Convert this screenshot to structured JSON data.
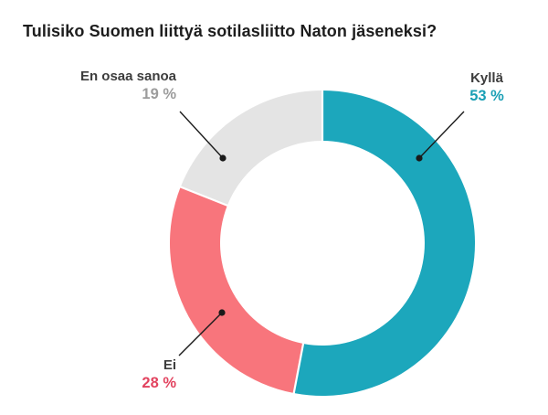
{
  "chart_data": {
    "type": "pie",
    "subtype": "donut",
    "title": "Tulisiko Suomen liittyä sotilasliitto Naton jäseneksi?",
    "total": 100,
    "start_angle_deg": 0,
    "direction": "clockwise",
    "donut_hole_ratio": 0.67,
    "legend_position": "callout-labels",
    "background": "#FFFFFF",
    "separator_color": "#FFFFFF",
    "leader_line_color": "#1A1A1A",
    "label_name_color": "#3D3D3D",
    "slices": [
      {
        "label": "Kyllä",
        "value": 53,
        "display_value": "53 %",
        "color": "#1CA7BC",
        "value_color": "#1A9FB5"
      },
      {
        "label": "Ei",
        "value": 28,
        "display_value": "28 %",
        "color": "#F8757C",
        "value_color": "#E2435F"
      },
      {
        "label": "En osaa sanoa",
        "value": 19,
        "display_value": "19 %",
        "color": "#E4E4E4",
        "value_color": "#9C9C9C"
      }
    ]
  }
}
